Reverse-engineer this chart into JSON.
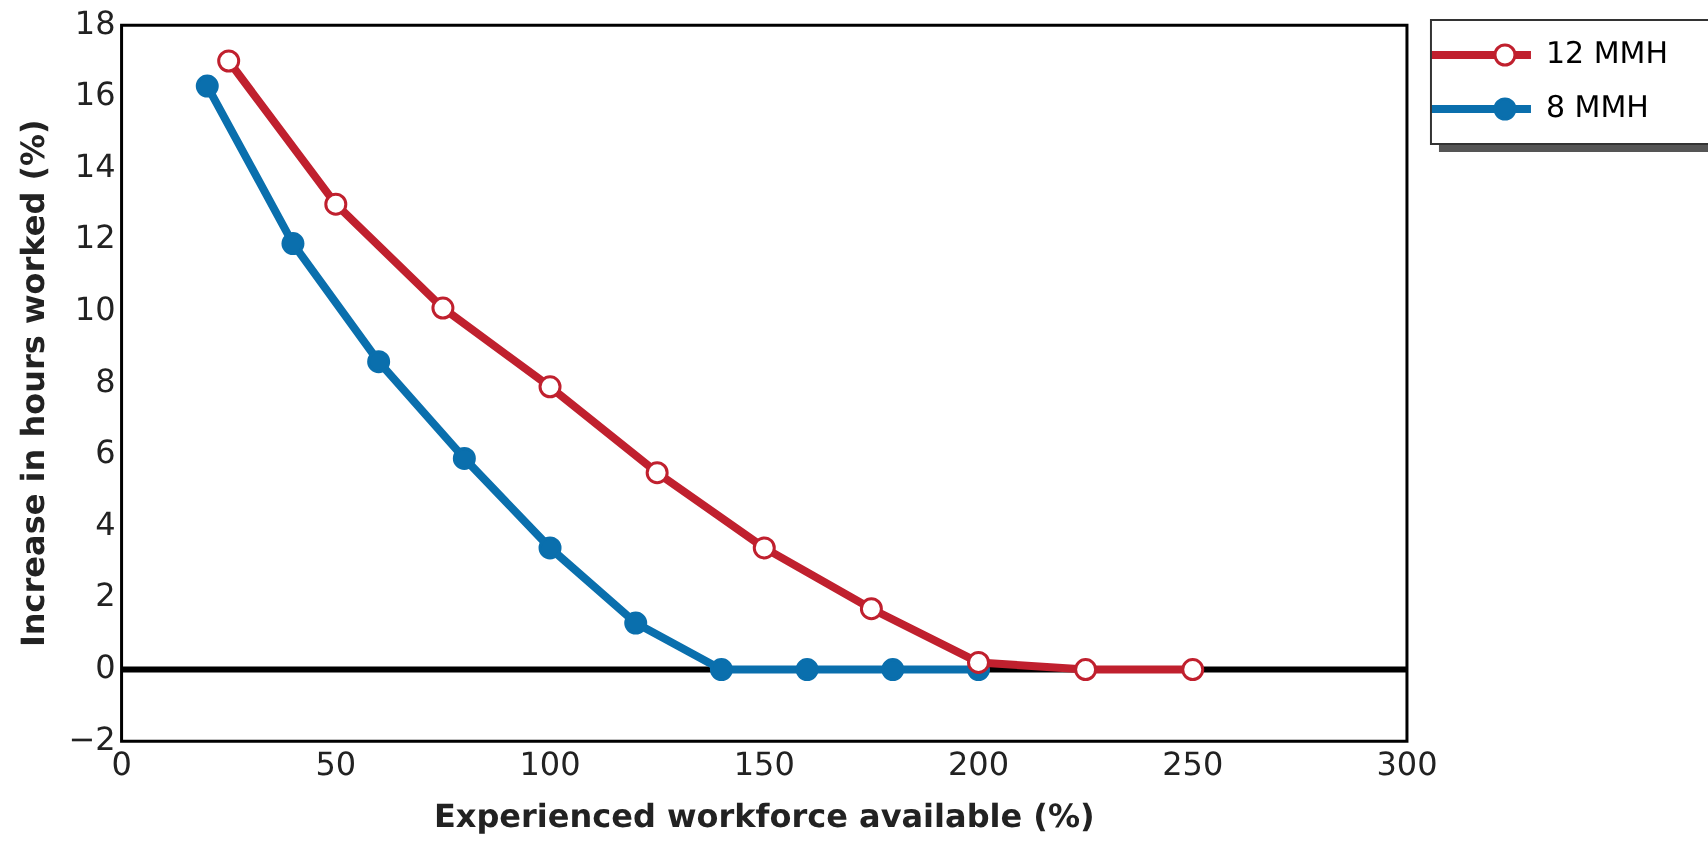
{
  "chart_data": {
    "type": "line",
    "xlabel": "Experienced workforce available (%)",
    "ylabel": "Increase in hours worked (%)",
    "xlim": [
      0,
      300
    ],
    "xticks": [
      0,
      50,
      100,
      150,
      200,
      250,
      300
    ],
    "ylim": [
      -2,
      18
    ],
    "yticks": [
      {
        "value": -2,
        "label": "−2"
      },
      0,
      2,
      4,
      6,
      8,
      10,
      12,
      14,
      16,
      18
    ],
    "grid": false,
    "legend": "right",
    "marker": "circle",
    "line_style": "solid",
    "ref_lines": [
      {
        "axis": "y",
        "value": 0,
        "color": "#000000"
      }
    ],
    "series": [
      {
        "name": "12 MMH",
        "color": "#c0202e",
        "x": [
          25,
          50,
          75,
          100,
          125,
          150,
          175,
          200,
          225,
          250
        ],
        "values": [
          17.0,
          13.0,
          10.1,
          7.9,
          5.5,
          3.4,
          1.7,
          0.2,
          0,
          0
        ]
      },
      {
        "name": "8 MMH",
        "color": "#0a6fad",
        "x": [
          20,
          40,
          60,
          80,
          100,
          120,
          140,
          160,
          180,
          200
        ],
        "values": [
          16.3,
          11.9,
          8.6,
          5.9,
          3.4,
          1.3,
          0,
          0,
          0,
          0
        ]
      }
    ]
  }
}
